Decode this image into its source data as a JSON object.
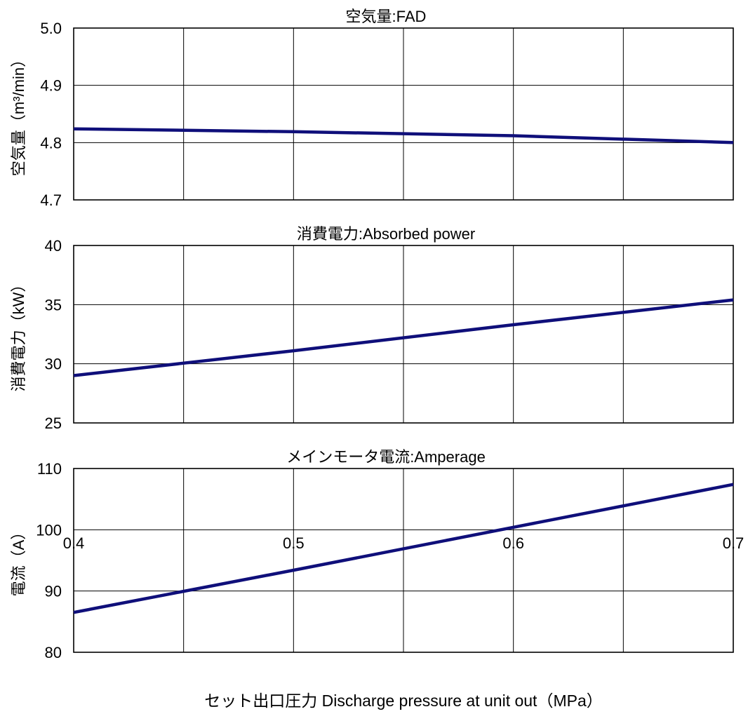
{
  "chart_data": [
    {
      "type": "line",
      "title": "空気量:FAD",
      "ylabel": "空気量（m³/min）",
      "ylim": [
        4.7,
        5.0
      ],
      "yticks": [
        "4.7",
        "4.8",
        "4.9",
        "5.0"
      ],
      "xlim": [
        0.4,
        0.7
      ],
      "x": [
        0.4,
        0.5,
        0.6,
        0.7
      ],
      "series": [
        {
          "values": [
            4.824,
            4.819,
            4.812,
            4.8
          ],
          "color": "#0f0f7a"
        }
      ]
    },
    {
      "type": "line",
      "title": "消費電力:Absorbed power",
      "ylabel": "消費電力（kW）",
      "ylim": [
        25,
        40
      ],
      "yticks": [
        "25",
        "30",
        "35",
        "40"
      ],
      "xlim": [
        0.4,
        0.7
      ],
      "x": [
        0.4,
        0.5,
        0.6,
        0.7
      ],
      "series": [
        {
          "values": [
            29.0,
            31.1,
            33.3,
            35.4
          ],
          "color": "#0f0f7a"
        }
      ]
    },
    {
      "type": "line",
      "title": "メインモータ電流:Amperage",
      "ylabel": "電流（A）",
      "ylim": [
        80,
        110
      ],
      "yticks": [
        "80",
        "90",
        "100",
        "110"
      ],
      "xlim": [
        0.4,
        0.7
      ],
      "x": [
        0.4,
        0.5,
        0.6,
        0.7
      ],
      "series": [
        {
          "values": [
            86.5,
            93.4,
            100.4,
            107.4
          ],
          "color": "#0f0f7a"
        }
      ]
    }
  ],
  "x_axis": {
    "ticks": [
      "0.4",
      "0.5",
      "0.6",
      "0.7"
    ],
    "label": "セット出口圧力 Discharge pressure at unit out（MPa）"
  }
}
